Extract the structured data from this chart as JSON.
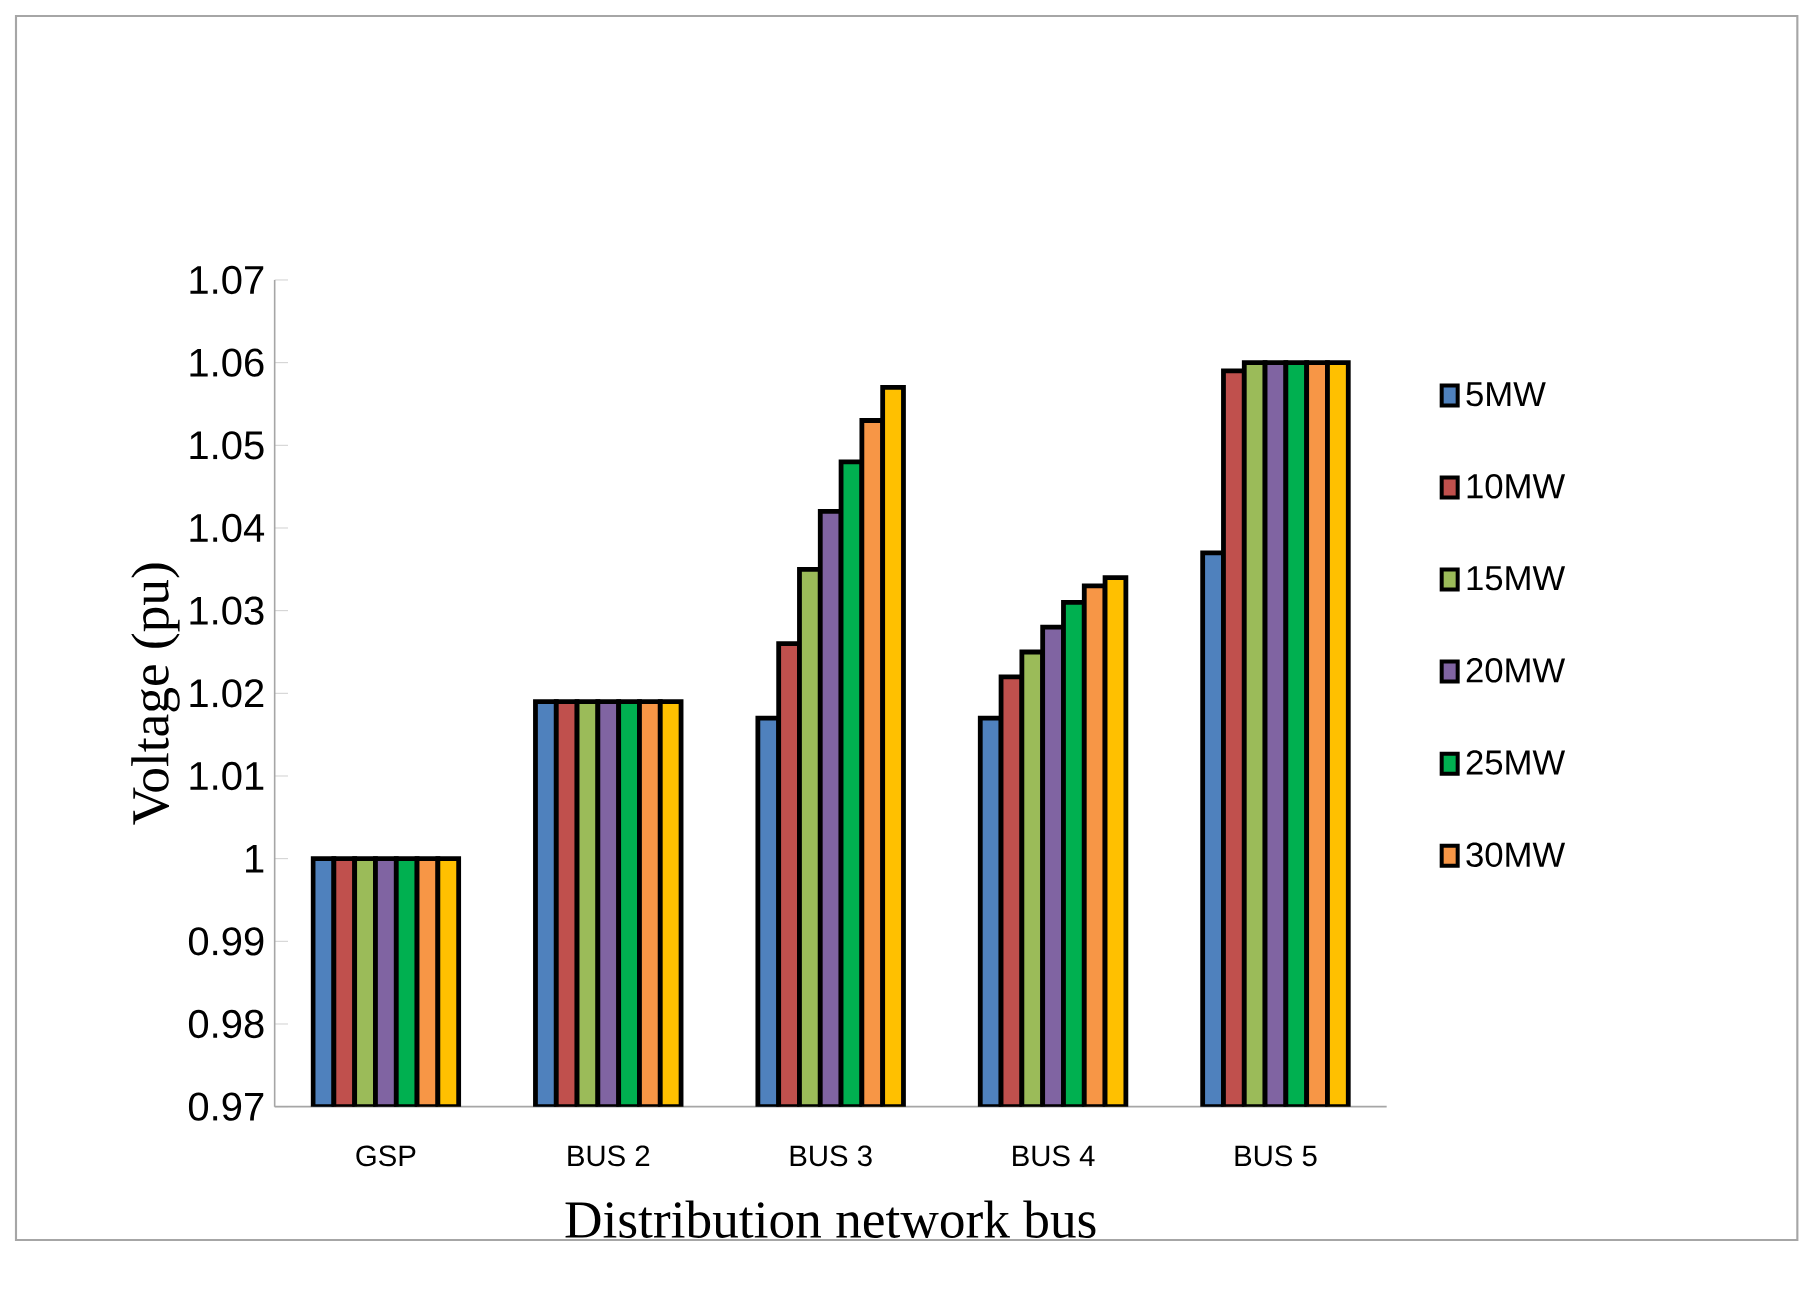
{
  "chart_data": {
    "type": "bar",
    "xlabel": "Distribution network bus",
    "ylabel": "Voltage (pu)",
    "categories": [
      "GSP",
      "BUS 2",
      "BUS 3",
      "BUS 4",
      "BUS 5"
    ],
    "series": [
      {
        "name": "5MW",
        "color": "#4f81bd",
        "values": [
          1.0,
          1.019,
          1.017,
          1.017,
          1.037
        ]
      },
      {
        "name": "10MW",
        "color": "#c0504d",
        "values": [
          1.0,
          1.019,
          1.026,
          1.022,
          1.059
        ]
      },
      {
        "name": "15MW",
        "color": "#9bbb59",
        "values": [
          1.0,
          1.019,
          1.035,
          1.025,
          1.06
        ]
      },
      {
        "name": "20MW",
        "color": "#8064a2",
        "values": [
          1.0,
          1.019,
          1.042,
          1.028,
          1.06
        ]
      },
      {
        "name": "25MW",
        "color": "#00b050",
        "values": [
          1.0,
          1.019,
          1.048,
          1.031,
          1.06
        ]
      },
      {
        "name": "30MW",
        "color": "#f79646",
        "values": [
          1.0,
          1.019,
          1.053,
          1.033,
          1.06
        ]
      },
      {
        "color": "#ffc000",
        "values": [
          1.0,
          1.019,
          1.057,
          1.034,
          1.06
        ]
      }
    ],
    "ylim": [
      0.97,
      1.07
    ],
    "yticks": [
      0.97,
      0.98,
      0.99,
      1,
      1.01,
      1.02,
      1.03,
      1.04,
      1.05,
      1.06,
      1.07
    ],
    "grid": false,
    "legend": "right"
  }
}
